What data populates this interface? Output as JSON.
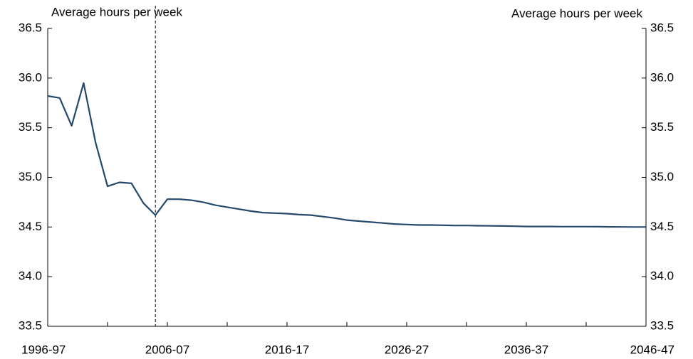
{
  "chart_data": {
    "type": "line",
    "y_label": "Average hours per week",
    "y2_label": "Average hours per week",
    "categories": [
      "1996-97",
      null,
      null,
      null,
      null,
      null,
      null,
      null,
      null,
      null,
      "2006-07",
      null,
      null,
      null,
      null,
      null,
      null,
      null,
      null,
      null,
      "2016-17",
      null,
      null,
      null,
      null,
      null,
      null,
      null,
      null,
      null,
      "2026-27",
      null,
      null,
      null,
      null,
      null,
      null,
      null,
      null,
      null,
      "2036-37",
      null,
      null,
      null,
      null,
      null,
      null,
      null,
      null,
      null,
      "2046-47"
    ],
    "series": [
      {
        "color": "#24496b",
        "values": [
          35.82,
          35.8,
          35.52,
          35.95,
          35.35,
          34.91,
          34.95,
          34.94,
          34.74,
          34.62,
          34.78,
          34.78,
          34.77,
          34.75,
          34.72,
          34.7,
          34.68,
          34.66,
          34.645,
          34.64,
          34.635,
          34.625,
          34.62,
          34.605,
          34.59,
          34.57,
          34.56,
          34.55,
          34.54,
          34.53,
          34.525,
          34.52,
          34.52,
          34.518,
          34.515,
          34.515,
          34.513,
          34.512,
          34.51,
          34.508,
          34.505,
          34.505,
          34.505,
          34.504,
          34.504,
          34.504,
          34.503,
          34.502,
          34.501,
          34.5,
          34.5
        ]
      }
    ],
    "ylim": [
      33.5,
      36.5
    ],
    "yticks": [
      33.5,
      {
        "value": 34,
        "label": "34.0"
      },
      34.5,
      {
        "value": 35,
        "label": "35.0"
      },
      35.5,
      {
        "value": 36,
        "label": "36.0"
      },
      36.5
    ],
    "y2lim": [
      33.5,
      36.5
    ],
    "y2ticks": [
      33.5,
      {
        "value": 34,
        "label": "34.0"
      },
      34.5,
      {
        "value": 35,
        "label": "35.0"
      },
      35.5,
      {
        "value": 36,
        "label": "36.0"
      },
      36.5
    ]
  }
}
